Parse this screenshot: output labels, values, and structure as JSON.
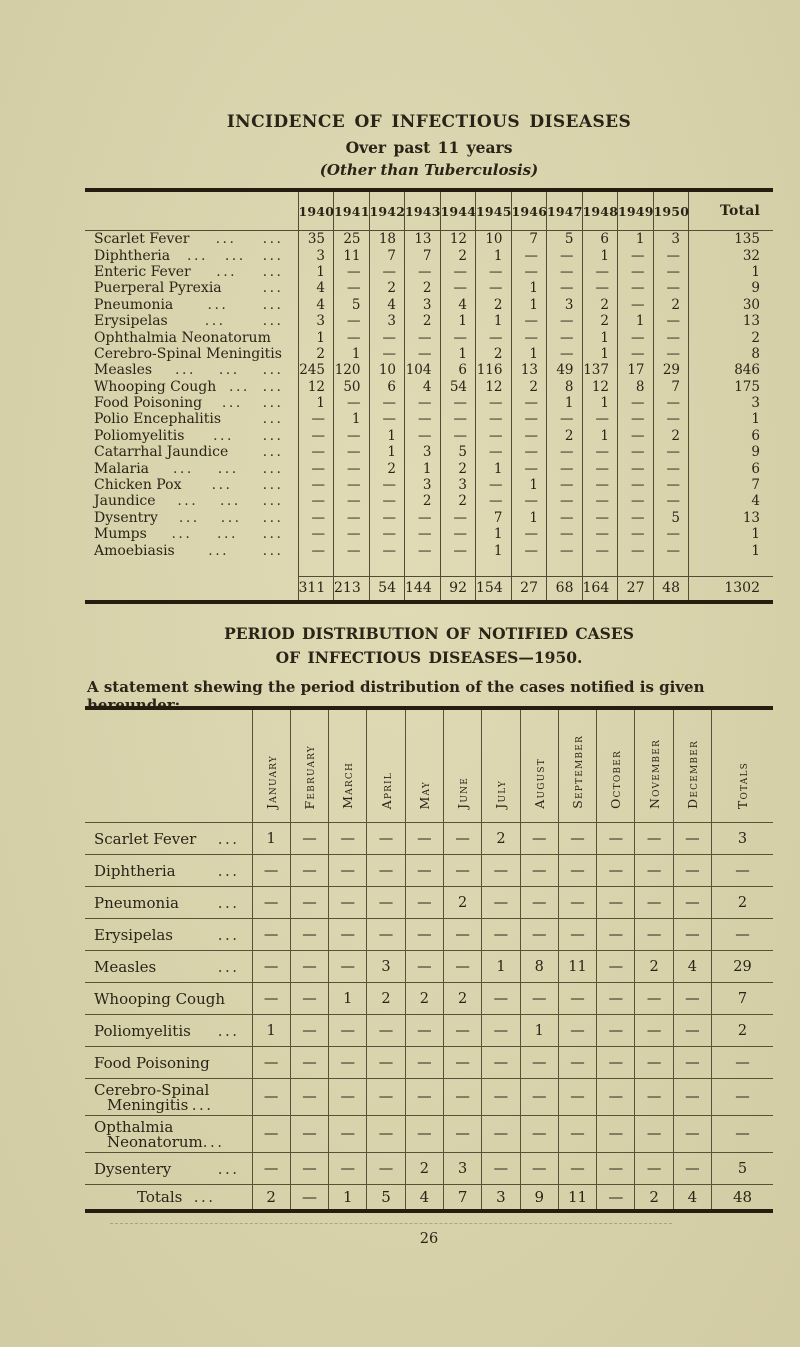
{
  "header": {
    "title": "INCIDENCE OF INFECTIOUS DISEASES",
    "subtitle": "Over past 11 years",
    "note": "(Other than Tuberculosis)"
  },
  "incidence_table": {
    "years": [
      "1940",
      "1941",
      "1942",
      "1943",
      "1944",
      "1945",
      "1946",
      "1947",
      "1948",
      "1949",
      "1950"
    ],
    "total_label": "Total",
    "rows": [
      {
        "label": "Scarlet Fever",
        "dots": 2,
        "values": [
          "35",
          "25",
          "18",
          "13",
          "12",
          "10",
          "7",
          "5",
          "6",
          "1",
          "3"
        ],
        "total": "135"
      },
      {
        "label": "Diphtheria",
        "dots": 3,
        "values": [
          "3",
          "11",
          "7",
          "7",
          "2",
          "1",
          "—",
          "—",
          "1",
          "—",
          "—"
        ],
        "total": "32"
      },
      {
        "label": "Enteric Fever",
        "dots": 2,
        "values": [
          "1",
          "—",
          "—",
          "—",
          "—",
          "—",
          "—",
          "—",
          "—",
          "—",
          "—"
        ],
        "total": "1"
      },
      {
        "label": "Puerperal Pyrexia",
        "dots": 1,
        "values": [
          "4",
          "—",
          "2",
          "2",
          "—",
          "—",
          "1",
          "—",
          "—",
          "—",
          "—"
        ],
        "total": "9"
      },
      {
        "label": "Pneumonia",
        "dots": 2,
        "values": [
          "4",
          "5",
          "4",
          "3",
          "4",
          "2",
          "1",
          "3",
          "2",
          "—",
          "2"
        ],
        "total": "30"
      },
      {
        "label": "Erysipelas",
        "dots": 2,
        "values": [
          "3",
          "—",
          "3",
          "2",
          "1",
          "1",
          "—",
          "—",
          "2",
          "1",
          "—"
        ],
        "total": "13"
      },
      {
        "label": "Ophthalmia Neonatorum",
        "dots": 0,
        "values": [
          "1",
          "—",
          "—",
          "—",
          "—",
          "—",
          "—",
          "—",
          "1",
          "—",
          "—"
        ],
        "total": "2"
      },
      {
        "label": "Cerebro-Spinal Meningitis",
        "dots": 0,
        "values": [
          "2",
          "1",
          "—",
          "—",
          "1",
          "2",
          "1",
          "—",
          "1",
          "—",
          "—"
        ],
        "total": "8"
      },
      {
        "label": "Measles",
        "dots": 3,
        "values": [
          "245",
          "120",
          "10",
          "104",
          "6",
          "116",
          "13",
          "49",
          "137",
          "17",
          "29"
        ],
        "total": "846"
      },
      {
        "label": "Whooping Cough",
        "dots": 2,
        "values": [
          "12",
          "50",
          "6",
          "4",
          "54",
          "12",
          "2",
          "8",
          "12",
          "8",
          "7"
        ],
        "total": "175"
      },
      {
        "label": "Food Poisoning",
        "dots": 2,
        "values": [
          "1",
          "—",
          "—",
          "—",
          "—",
          "—",
          "—",
          "1",
          "1",
          "—",
          "—"
        ],
        "total": "3"
      },
      {
        "label": "Polio Encephalitis",
        "dots": 1,
        "values": [
          "—",
          "1",
          "—",
          "—",
          "—",
          "—",
          "—",
          "—",
          "—",
          "—",
          "—"
        ],
        "total": "1"
      },
      {
        "label": "Poliomyelitis",
        "dots": 2,
        "values": [
          "—",
          "—",
          "1",
          "—",
          "—",
          "—",
          "—",
          "2",
          "1",
          "—",
          "2"
        ],
        "total": "6"
      },
      {
        "label": "Catarrhal Jaundice",
        "dots": 1,
        "values": [
          "—",
          "—",
          "1",
          "3",
          "5",
          "—",
          "—",
          "—",
          "—",
          "—",
          "—"
        ],
        "total": "9"
      },
      {
        "label": "Malaria",
        "dots": 3,
        "values": [
          "—",
          "—",
          "2",
          "1",
          "2",
          "1",
          "—",
          "—",
          "—",
          "—",
          "—"
        ],
        "total": "6"
      },
      {
        "label": "Chicken Pox",
        "dots": 2,
        "values": [
          "—",
          "—",
          "—",
          "3",
          "3",
          "—",
          "1",
          "—",
          "—",
          "—",
          "—"
        ],
        "total": "7"
      },
      {
        "label": "Jaundice",
        "dots": 3,
        "values": [
          "—",
          "—",
          "—",
          "2",
          "2",
          "—",
          "—",
          "—",
          "—",
          "—",
          "—"
        ],
        "total": "4"
      },
      {
        "label": "Dysentry",
        "dots": 3,
        "values": [
          "—",
          "—",
          "—",
          "—",
          "—",
          "7",
          "1",
          "—",
          "—",
          "—",
          "5"
        ],
        "total": "13"
      },
      {
        "label": "Mumps",
        "dots": 3,
        "values": [
          "—",
          "—",
          "—",
          "—",
          "—",
          "1",
          "—",
          "—",
          "—",
          "—",
          "—"
        ],
        "total": "1"
      },
      {
        "label": "Amoebiasis",
        "dots": 2,
        "values": [
          "—",
          "—",
          "—",
          "—",
          "—",
          "1",
          "—",
          "—",
          "—",
          "—",
          "—"
        ],
        "total": "1"
      }
    ],
    "totals_row": {
      "values": [
        "311",
        "213",
        "54",
        "144",
        "92",
        "154",
        "27",
        "68",
        "164",
        "27",
        "48"
      ],
      "total": "1302"
    }
  },
  "period_section": {
    "title_line1": "PERIOD DISTRIBUTION OF NOTIFIED CASES",
    "title_line2": "OF INFECTIOUS DISEASES—1950.",
    "statement": "A statement shewing the period distribution of the cases notified is given hereunder:"
  },
  "period_table": {
    "months": [
      "January",
      "February",
      "March",
      "April",
      "May",
      "June",
      "July",
      "August",
      "September",
      "October",
      "November",
      "December"
    ],
    "totals_header": "Totals",
    "rows": [
      {
        "label": "Scarlet Fever",
        "dots": 1,
        "values": [
          "1",
          "—",
          "—",
          "—",
          "—",
          "—",
          "2",
          "—",
          "—",
          "—",
          "—",
          "—"
        ],
        "total": "3"
      },
      {
        "label": "Diphtheria",
        "dots": 1,
        "values": [
          "—",
          "—",
          "—",
          "—",
          "—",
          "—",
          "—",
          "—",
          "—",
          "—",
          "—",
          "—"
        ],
        "total": "—"
      },
      {
        "label": "Pneumonia",
        "dots": 1,
        "values": [
          "—",
          "—",
          "—",
          "—",
          "—",
          "2",
          "—",
          "—",
          "—",
          "—",
          "—",
          "—"
        ],
        "total": "2"
      },
      {
        "label": "Erysipelas",
        "dots": 1,
        "values": [
          "—",
          "—",
          "—",
          "—",
          "—",
          "—",
          "—",
          "—",
          "—",
          "—",
          "—",
          "—"
        ],
        "total": "—"
      },
      {
        "label": "Measles",
        "dots": 1,
        "values": [
          "—",
          "—",
          "—",
          "3",
          "—",
          "—",
          "1",
          "8",
          "11",
          "—",
          "2",
          "4"
        ],
        "total": "29"
      },
      {
        "label": "Whooping Cough",
        "dots": 0,
        "values": [
          "—",
          "—",
          "1",
          "2",
          "2",
          "2",
          "—",
          "—",
          "—",
          "—",
          "—",
          "—"
        ],
        "total": "7"
      },
      {
        "label": "Poliomyelitis",
        "dots": 1,
        "values": [
          "1",
          "—",
          "—",
          "—",
          "—",
          "—",
          "—",
          "1",
          "—",
          "—",
          "—",
          "—"
        ],
        "total": "2"
      },
      {
        "label": "Food Poisoning",
        "dots": 0,
        "values": [
          "—",
          "—",
          "—",
          "—",
          "—",
          "—",
          "—",
          "—",
          "—",
          "—",
          "—",
          "—"
        ],
        "total": "—"
      },
      {
        "label": "Cerebro-Spinal",
        "dots": 0,
        "label2": "Meningitis",
        "dots2": 1,
        "values": [
          "—",
          "—",
          "—",
          "—",
          "—",
          "—",
          "—",
          "—",
          "—",
          "—",
          "—",
          "—"
        ],
        "total": "—"
      },
      {
        "label": "Opthalmia",
        "dots": 0,
        "label2": "Neonatorum",
        "dots2": 1,
        "values": [
          "—",
          "—",
          "—",
          "—",
          "—",
          "—",
          "—",
          "—",
          "—",
          "—",
          "—",
          "—"
        ],
        "total": "—"
      },
      {
        "label": "Dysentery",
        "dots": 1,
        "values": [
          "—",
          "—",
          "—",
          "—",
          "2",
          "3",
          "—",
          "—",
          "—",
          "—",
          "—",
          "—"
        ],
        "total": "5"
      }
    ],
    "totals_row": {
      "label": "Totals",
      "dots": 1,
      "values": [
        "2",
        "—",
        "1",
        "5",
        "4",
        "7",
        "3",
        "9",
        "11",
        "—",
        "2",
        "4"
      ],
      "total": "48"
    }
  },
  "footer": {
    "page_number": "26"
  }
}
